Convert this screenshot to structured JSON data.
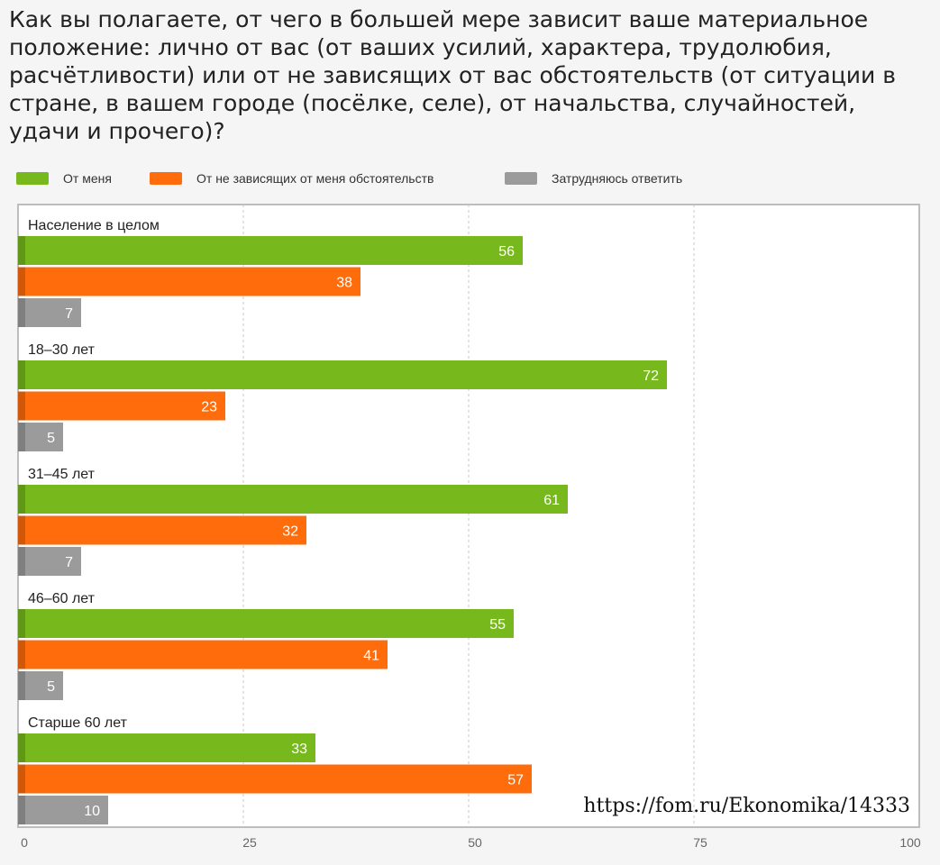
{
  "title": "Как вы полагаете, от чего в большей мере зависит ваше материальное положение: лично от вас (от ваших усилий, характера, трудолюбия, расчётливости) или от не зависящих от вас обстоятельств (от ситуации в стране, в вашем городе (посёлке, селе), от начальства, случайностей, удачи и прочего)?",
  "source_note": "https://fom.ru/Ekonomika/14333",
  "legend": [
    {
      "label": "От меня",
      "color": "#77b91c"
    },
    {
      "label": "От не зависящих от меня обстоятельств",
      "color": "#ff6c0c"
    },
    {
      "label": "Затрудняюсь ответить",
      "color": "#9b9b9b"
    }
  ],
  "chart_data": {
    "type": "bar",
    "orientation": "horizontal",
    "categories": [
      "Население в целом",
      "18–30 лет",
      "31–45 лет",
      "46–60 лет",
      "Старше 60 лет"
    ],
    "series": [
      {
        "name": "От меня",
        "color": "#77b91c",
        "values": [
          56,
          72,
          61,
          55,
          33
        ]
      },
      {
        "name": "От не зависящих от меня обстоятельств",
        "color": "#ff6c0c",
        "values": [
          38,
          23,
          32,
          41,
          57
        ]
      },
      {
        "name": "Затрудняюсь ответить",
        "color": "#9b9b9b",
        "values": [
          7,
          5,
          7,
          5,
          10
        ]
      }
    ],
    "xlim": [
      0,
      100
    ],
    "xticks": [
      0,
      25,
      50,
      75,
      100
    ],
    "grid": true,
    "legend_position": "top-left",
    "data_labels": true
  }
}
